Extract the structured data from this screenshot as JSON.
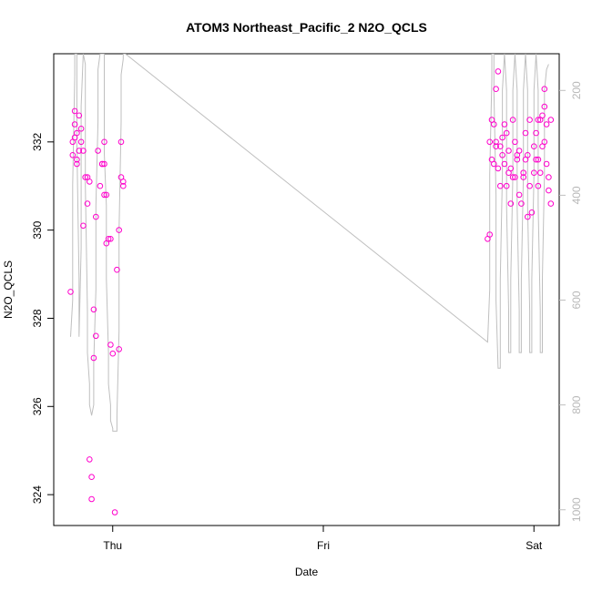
{
  "chart_data": {
    "type": "scatter",
    "title": "ATOM3 Northeast_Pacific_2 N2O_QCLS",
    "xlabel": "Date",
    "ylabel": "N2O_QCLS",
    "x_ticks": [
      {
        "label": "Thu",
        "day": 1.0
      },
      {
        "label": "Fri",
        "day": 2.0
      },
      {
        "label": "Sat",
        "day": 3.0
      }
    ],
    "y_ticks": [
      324,
      326,
      328,
      330,
      332
    ],
    "y_right_ticks": [
      200,
      400,
      600,
      800,
      1000
    ],
    "xlim": [
      0.72,
      3.12
    ],
    "ylim": [
      323.3,
      334.0
    ],
    "y_right_lim": [
      1030,
      130
    ],
    "grid": false,
    "colors": {
      "points": "#ff00cc",
      "line": "#bfbfbf",
      "right_axis": "#bfbfbf",
      "axis": "#000000"
    },
    "series": [
      {
        "kind": "points",
        "color": "#ff00cc",
        "points": [
          [
            0.8,
            328.6
          ],
          [
            0.81,
            331.7
          ],
          [
            0.81,
            332.0
          ],
          [
            0.82,
            332.1
          ],
          [
            0.82,
            332.4
          ],
          [
            0.82,
            332.7
          ],
          [
            0.83,
            331.6
          ],
          [
            0.83,
            331.5
          ],
          [
            0.83,
            332.2
          ],
          [
            0.84,
            332.6
          ],
          [
            0.84,
            331.8
          ],
          [
            0.85,
            332.0
          ],
          [
            0.85,
            332.3
          ],
          [
            0.86,
            330.1
          ],
          [
            0.86,
            331.8
          ],
          [
            0.87,
            331.2
          ],
          [
            0.88,
            330.6
          ],
          [
            0.88,
            331.2
          ],
          [
            0.89,
            324.8
          ],
          [
            0.89,
            331.1
          ],
          [
            0.9,
            323.9
          ],
          [
            0.9,
            324.4
          ],
          [
            0.91,
            327.1
          ],
          [
            0.91,
            328.2
          ],
          [
            0.92,
            327.6
          ],
          [
            0.92,
            330.3
          ],
          [
            0.93,
            331.8
          ],
          [
            0.94,
            331.0
          ],
          [
            0.95,
            331.5
          ],
          [
            0.95,
            331.5
          ],
          [
            0.96,
            331.5
          ],
          [
            0.96,
            330.8
          ],
          [
            0.96,
            332.0
          ],
          [
            0.97,
            329.7
          ],
          [
            0.97,
            330.8
          ],
          [
            0.98,
            329.8
          ],
          [
            0.99,
            327.4
          ],
          [
            0.99,
            329.8
          ],
          [
            1.0,
            327.2
          ],
          [
            1.01,
            323.6
          ],
          [
            1.02,
            329.1
          ],
          [
            1.03,
            327.3
          ],
          [
            1.03,
            330.0
          ],
          [
            1.04,
            331.2
          ],
          [
            1.04,
            332.0
          ],
          [
            1.05,
            331.0
          ],
          [
            1.05,
            331.1
          ],
          [
            2.78,
            329.8
          ],
          [
            2.79,
            329.9
          ],
          [
            2.79,
            332.0
          ],
          [
            2.8,
            331.6
          ],
          [
            2.8,
            332.5
          ],
          [
            2.81,
            332.4
          ],
          [
            2.81,
            331.5
          ],
          [
            2.82,
            332.0
          ],
          [
            2.82,
            333.2
          ],
          [
            2.82,
            331.9
          ],
          [
            2.83,
            333.6
          ],
          [
            2.83,
            331.4
          ],
          [
            2.84,
            331.0
          ],
          [
            2.84,
            331.9
          ],
          [
            2.85,
            332.1
          ],
          [
            2.85,
            331.7
          ],
          [
            2.86,
            332.4
          ],
          [
            2.86,
            331.5
          ],
          [
            2.87,
            331.0
          ],
          [
            2.87,
            332.2
          ],
          [
            2.88,
            331.3
          ],
          [
            2.88,
            331.8
          ],
          [
            2.89,
            330.6
          ],
          [
            2.89,
            331.4
          ],
          [
            2.9,
            332.5
          ],
          [
            2.9,
            331.2
          ],
          [
            2.91,
            331.2
          ],
          [
            2.91,
            332.0
          ],
          [
            2.92,
            331.6
          ],
          [
            2.92,
            331.7
          ],
          [
            2.93,
            330.8
          ],
          [
            2.93,
            331.8
          ],
          [
            2.94,
            330.6
          ],
          [
            2.95,
            331.3
          ],
          [
            2.95,
            331.2
          ],
          [
            2.96,
            332.2
          ],
          [
            2.96,
            331.6
          ],
          [
            2.97,
            330.3
          ],
          [
            2.97,
            331.7
          ],
          [
            2.98,
            332.5
          ],
          [
            2.98,
            331.0
          ],
          [
            2.99,
            330.4
          ],
          [
            3.0,
            331.9
          ],
          [
            3.0,
            331.3
          ],
          [
            3.01,
            332.2
          ],
          [
            3.01,
            331.6
          ],
          [
            3.02,
            331.0
          ],
          [
            3.02,
            332.5
          ],
          [
            3.02,
            331.6
          ],
          [
            3.03,
            332.5
          ],
          [
            3.03,
            331.3
          ],
          [
            3.04,
            332.6
          ],
          [
            3.04,
            331.9
          ],
          [
            3.05,
            332.0
          ],
          [
            3.05,
            332.8
          ],
          [
            3.05,
            333.2
          ],
          [
            3.06,
            332.4
          ],
          [
            3.06,
            331.5
          ],
          [
            3.07,
            331.2
          ],
          [
            3.07,
            330.9
          ],
          [
            3.08,
            332.5
          ],
          [
            3.08,
            330.6
          ]
        ]
      },
      {
        "kind": "line",
        "axis": "right",
        "color": "#bfbfbf",
        "points": [
          [
            0.8,
            670
          ],
          [
            0.81,
            600
          ],
          [
            0.81,
            380
          ],
          [
            0.82,
            170
          ],
          [
            0.82,
            130
          ],
          [
            0.83,
            130
          ],
          [
            0.83,
            300
          ],
          [
            0.84,
            560
          ],
          [
            0.84,
            670
          ],
          [
            0.85,
            500
          ],
          [
            0.85,
            230
          ],
          [
            0.86,
            130
          ],
          [
            0.86,
            130
          ],
          [
            0.87,
            150
          ],
          [
            0.87,
            380
          ],
          [
            0.88,
            620
          ],
          [
            0.88,
            700
          ],
          [
            0.89,
            760
          ],
          [
            0.89,
            800
          ],
          [
            0.9,
            820
          ],
          [
            0.91,
            800
          ],
          [
            0.91,
            720
          ],
          [
            0.92,
            580
          ],
          [
            0.92,
            420
          ],
          [
            0.93,
            260
          ],
          [
            0.93,
            160
          ],
          [
            0.94,
            130
          ],
          [
            0.95,
            130
          ],
          [
            0.96,
            130
          ],
          [
            0.96,
            210
          ],
          [
            0.96,
            320
          ],
          [
            0.97,
            420
          ],
          [
            0.97,
            560
          ],
          [
            0.98,
            700
          ],
          [
            0.98,
            760
          ],
          [
            0.99,
            800
          ],
          [
            0.99,
            830
          ],
          [
            1.0,
            845
          ],
          [
            1.0,
            850
          ],
          [
            1.01,
            850
          ],
          [
            1.02,
            850
          ],
          [
            1.02,
            820
          ],
          [
            1.03,
            660
          ],
          [
            1.03,
            470
          ],
          [
            1.04,
            260
          ],
          [
            1.04,
            170
          ],
          [
            1.05,
            140
          ],
          [
            1.05,
            130
          ],
          [
            1.06,
            130
          ],
          [
            2.78,
            680
          ],
          [
            2.79,
            580
          ],
          [
            2.79,
            360
          ],
          [
            2.8,
            180
          ],
          [
            2.8,
            130
          ],
          [
            2.81,
            130
          ],
          [
            2.81,
            200
          ],
          [
            2.82,
            400
          ],
          [
            2.82,
            600
          ],
          [
            2.83,
            730
          ],
          [
            2.84,
            730
          ],
          [
            2.84,
            560
          ],
          [
            2.85,
            360
          ],
          [
            2.85,
            200
          ],
          [
            2.86,
            130
          ],
          [
            2.86,
            130
          ],
          [
            2.87,
            200
          ],
          [
            2.87,
            420
          ],
          [
            2.88,
            620
          ],
          [
            2.88,
            700
          ],
          [
            2.89,
            700
          ],
          [
            2.89,
            560
          ],
          [
            2.9,
            360
          ],
          [
            2.9,
            200
          ],
          [
            2.91,
            130
          ],
          [
            2.91,
            130
          ],
          [
            2.92,
            200
          ],
          [
            2.92,
            420
          ],
          [
            2.93,
            620
          ],
          [
            2.93,
            700
          ],
          [
            2.94,
            700
          ],
          [
            2.94,
            560
          ],
          [
            2.95,
            360
          ],
          [
            2.95,
            200
          ],
          [
            2.96,
            130
          ],
          [
            2.96,
            130
          ],
          [
            2.97,
            200
          ],
          [
            2.97,
            420
          ],
          [
            2.98,
            620
          ],
          [
            2.98,
            700
          ],
          [
            2.99,
            700
          ],
          [
            2.99,
            560
          ],
          [
            3.0,
            360
          ],
          [
            3.0,
            200
          ],
          [
            3.01,
            130
          ],
          [
            3.01,
            130
          ],
          [
            3.02,
            200
          ],
          [
            3.02,
            420
          ],
          [
            3.03,
            620
          ],
          [
            3.03,
            700
          ],
          [
            3.04,
            700
          ],
          [
            3.04,
            560
          ],
          [
            3.05,
            360
          ],
          [
            3.05,
            200
          ],
          [
            3.06,
            160
          ],
          [
            3.07,
            150
          ]
        ]
      }
    ]
  }
}
